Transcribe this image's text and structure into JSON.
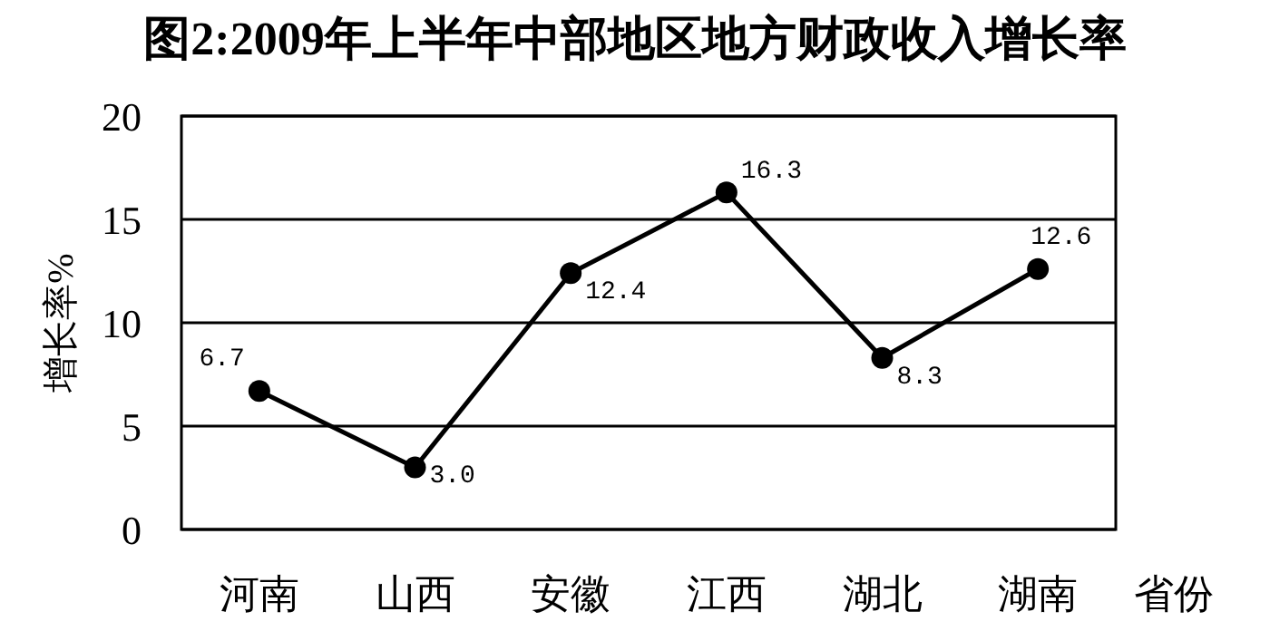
{
  "chart_data": {
    "type": "line",
    "title": "图2:2009年上半年中部地区地方财政收入增长率",
    "ylabel": "增长率%",
    "xlabel": "省份",
    "categories": [
      "河南",
      "山西",
      "安徽",
      "江西",
      "湖北",
      "湖南"
    ],
    "series": [
      {
        "color": "#000000",
        "values": [
          6.7,
          3.0,
          12.4,
          16.3,
          8.3,
          12.6
        ],
        "value_labels": [
          "6.7",
          "3.0",
          "12.4",
          "16.3",
          "8.3",
          "12.6"
        ]
      }
    ],
    "ylim": [
      0,
      20
    ],
    "yticks": [
      0,
      5,
      10,
      15,
      20
    ],
    "grid": "y",
    "marker": "circle",
    "line_style": "solid"
  }
}
